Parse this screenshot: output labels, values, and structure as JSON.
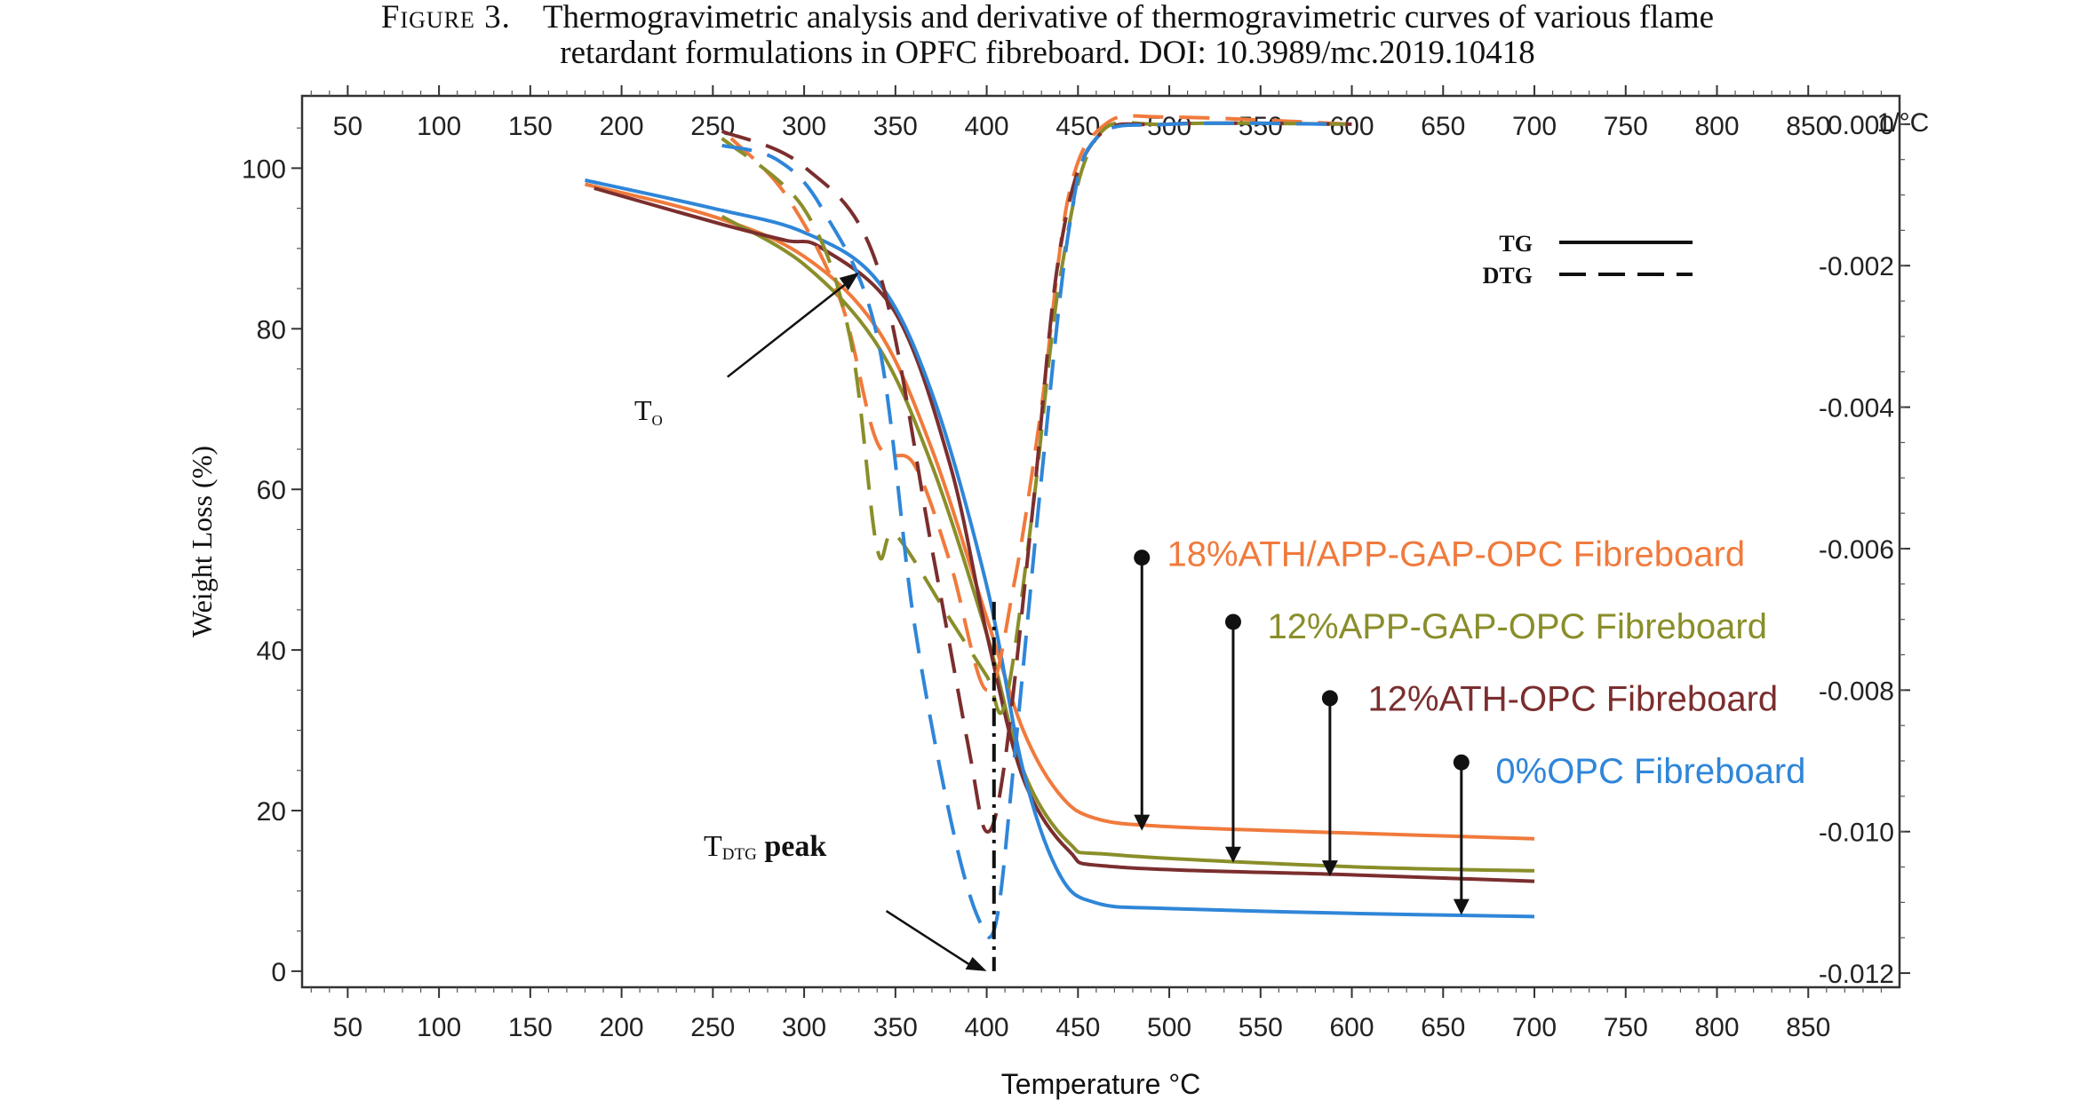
{
  "caption": {
    "label": "Figure 3.",
    "line1": "Thermogravimetric analysis and derivative of thermogravimetric curves of various flame",
    "line2": "retardant formulations in OPFC fibreboard. DOI: 10.3989/mc.2019.10418"
  },
  "chart_data": {
    "type": "line",
    "xlabel": "Temperature °C",
    "ylabel": "Weight Loss (%)",
    "y2label": "1/°C",
    "xlim": [
      25,
      900
    ],
    "ylim": [
      -2,
      109
    ],
    "y2lim": [
      -0.0122,
      0.0004
    ],
    "x_ticks": [
      50,
      100,
      150,
      200,
      250,
      300,
      350,
      400,
      450,
      500,
      550,
      600,
      650,
      700,
      750,
      800,
      850
    ],
    "y_ticks": [
      0,
      20,
      40,
      60,
      80,
      100
    ],
    "y2_ticks": [
      0.0,
      -0.002,
      -0.004,
      -0.006,
      -0.008,
      -0.01,
      -0.012
    ],
    "y2_tick_labels": [
      "0.000",
      "-0.002",
      "-0.004",
      "-0.006",
      "-0.008",
      "-0.010",
      "-0.012"
    ],
    "legend": [
      {
        "label": "TG",
        "style": "solid"
      },
      {
        "label": "DTG",
        "style": "dashed"
      }
    ],
    "legend_position": "top-right",
    "annotations": {
      "onset": {
        "text": "T",
        "sub": "O",
        "x": 330,
        "y": 87
      },
      "dtg_peak": {
        "text": "T",
        "sub": "DTG",
        "suffix": " peak",
        "x": 400,
        "y": 0
      }
    },
    "series": [
      {
        "name": "18%ATH/APP-GAP-OPC Fibreboard",
        "color": "#f07a3c",
        "tg": [
          [
            180,
            98
          ],
          [
            250,
            94
          ],
          [
            300,
            89
          ],
          [
            340,
            80
          ],
          [
            370,
            65
          ],
          [
            400,
            44
          ],
          [
            420,
            30
          ],
          [
            440,
            22
          ],
          [
            460,
            19
          ],
          [
            500,
            18
          ],
          [
            600,
            17.2
          ],
          [
            700,
            16.5
          ]
        ],
        "dtg": [
          [
            260,
            -0.0002
          ],
          [
            290,
            -0.001
          ],
          [
            320,
            -0.0025
          ],
          [
            340,
            -0.0045
          ],
          [
            360,
            -0.0048
          ],
          [
            380,
            -0.0062
          ],
          [
            400,
            -0.008
          ],
          [
            415,
            -0.0065
          ],
          [
            430,
            -0.004
          ],
          [
            445,
            -0.001
          ],
          [
            465,
            0.0
          ],
          [
            500,
            0.0001
          ],
          [
            600,
            0.0
          ]
        ],
        "label_pos": {
          "x": 490,
          "y": 52
        },
        "arrow": {
          "x": 485,
          "y_from": 51.5,
          "y_to": 17.5
        }
      },
      {
        "name": "12%APP-GAP-OPC Fibreboard",
        "color": "#8a8e2a",
        "tg": [
          [
            255,
            94
          ],
          [
            300,
            88
          ],
          [
            340,
            78
          ],
          [
            370,
            63
          ],
          [
            400,
            42
          ],
          [
            420,
            25
          ],
          [
            445,
            16
          ],
          [
            470,
            14.5
          ],
          [
            600,
            13
          ],
          [
            700,
            12.5
          ]
        ],
        "dtg": [
          [
            255,
            -0.0002
          ],
          [
            300,
            -0.0012
          ],
          [
            325,
            -0.003
          ],
          [
            340,
            -0.006
          ],
          [
            350,
            -0.0058
          ],
          [
            380,
            -0.007
          ],
          [
            400,
            -0.0078
          ],
          [
            410,
            -0.0082
          ],
          [
            425,
            -0.0055
          ],
          [
            440,
            -0.0022
          ],
          [
            460,
            -0.0002
          ],
          [
            500,
            0.0
          ],
          [
            600,
            0.0
          ]
        ],
        "label_pos": {
          "x": 545,
          "y": 43
        },
        "arrow": {
          "x": 535,
          "y_from": 43.5,
          "y_to": 13.5
        }
      },
      {
        "name": "12%ATH-OPC Fibreboard",
        "color": "#7b2e2e",
        "tg": [
          [
            185,
            97.5
          ],
          [
            255,
            93
          ],
          [
            290,
            91
          ],
          [
            310,
            90
          ],
          [
            350,
            82
          ],
          [
            380,
            63
          ],
          [
            400,
            42
          ],
          [
            420,
            24
          ],
          [
            445,
            15
          ],
          [
            470,
            13
          ],
          [
            600,
            12
          ],
          [
            700,
            11.2
          ]
        ],
        "dtg": [
          [
            255,
            -0.0001
          ],
          [
            300,
            -0.0006
          ],
          [
            340,
            -0.002
          ],
          [
            370,
            -0.006
          ],
          [
            390,
            -0.0088
          ],
          [
            400,
            -0.01
          ],
          [
            410,
            -0.009
          ],
          [
            425,
            -0.0055
          ],
          [
            440,
            -0.0018
          ],
          [
            460,
            -0.0002
          ],
          [
            500,
            0.0
          ],
          [
            600,
            0.0
          ]
        ],
        "label_pos": {
          "x": 600,
          "y": 34
        },
        "arrow": {
          "x": 588,
          "y_from": 34,
          "y_to": 11.8
        }
      },
      {
        "name": "0%OPC Fibreboard",
        "color": "#2f86d8",
        "tg": [
          [
            180,
            98.5
          ],
          [
            250,
            95
          ],
          [
            300,
            92
          ],
          [
            340,
            86
          ],
          [
            370,
            72
          ],
          [
            400,
            48
          ],
          [
            420,
            25
          ],
          [
            440,
            12
          ],
          [
            460,
            8.5
          ],
          [
            500,
            7.8
          ],
          [
            600,
            7.2
          ],
          [
            700,
            6.8
          ]
        ],
        "dtg": [
          [
            255,
            -0.0003
          ],
          [
            285,
            -0.0005
          ],
          [
            310,
            -0.0012
          ],
          [
            340,
            -0.003
          ],
          [
            360,
            -0.007
          ],
          [
            380,
            -0.0098
          ],
          [
            395,
            -0.0112
          ],
          [
            405,
            -0.0113
          ],
          [
            415,
            -0.009
          ],
          [
            430,
            -0.005
          ],
          [
            445,
            -0.0015
          ],
          [
            460,
            -0.0002
          ],
          [
            500,
            0.0
          ],
          [
            595,
            0.0
          ]
        ],
        "label_pos": {
          "x": 670,
          "y": 25
        },
        "arrow": {
          "x": 660,
          "y_from": 26,
          "y_to": 7.0
        }
      }
    ]
  }
}
